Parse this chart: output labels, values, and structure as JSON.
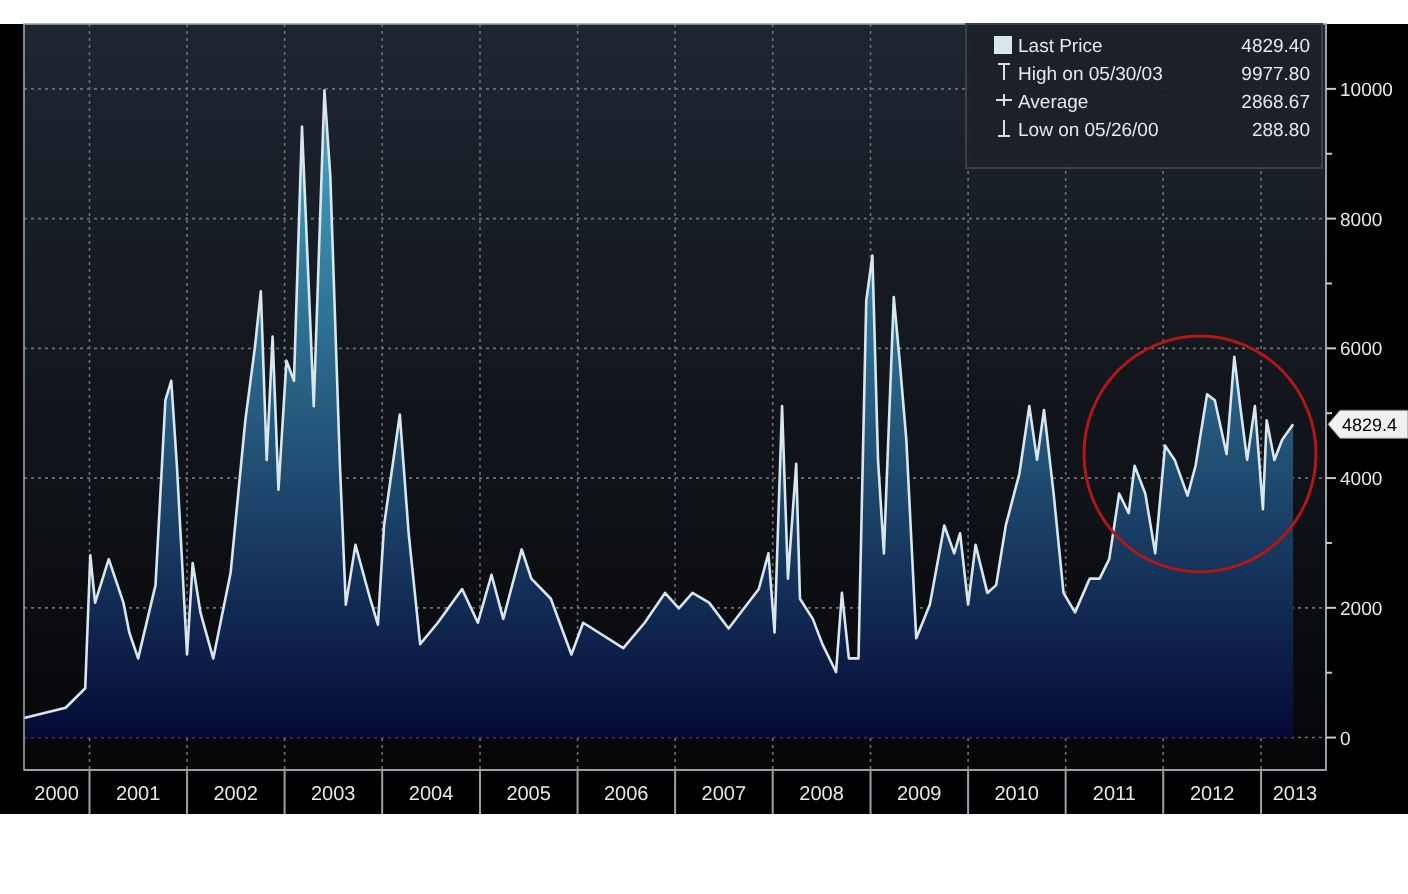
{
  "chart_data": {
    "type": "area",
    "x": [
      "2000-05-01",
      "2000-10-04",
      "2000-12-16",
      "2001-01-04",
      "2001-01-22",
      "2001-03-14",
      "2001-05-08",
      "2001-05-30",
      "2001-07-02",
      "2001-09-05",
      "2001-10-12",
      "2001-11-03",
      "2001-11-24",
      "2002-01-01",
      "2002-01-22",
      "2002-02-20",
      "2002-04-09",
      "2002-06-13",
      "2002-08-07",
      "2002-09-12",
      "2002-10-04",
      "2002-10-26",
      "2002-11-17",
      "2002-12-09",
      "2003-01-08",
      "2003-02-05",
      "2003-03-07",
      "2003-04-20",
      "2003-05-30",
      "2003-06-21",
      "2003-07-27",
      "2003-08-18",
      "2003-09-23",
      "2003-11-17",
      "2003-12-16",
      "2004-01-08",
      "2004-03-07",
      "2004-04-09",
      "2004-05-22",
      "2004-07-27",
      "2004-10-26",
      "2004-12-24",
      "2005-02-13",
      "2005-03-29",
      "2005-06-06",
      "2005-07-12",
      "2005-09-23",
      "2005-12-09",
      "2006-01-22",
      "2006-06-21",
      "2006-09-09",
      "2006-11-24",
      "2007-01-15",
      "2007-03-07",
      "2007-05-08",
      "2007-07-20",
      "2007-11-10",
      "2007-12-16",
      "2008-01-08",
      "2008-02-05",
      "2008-02-27",
      "2008-03-29",
      "2008-04-12",
      "2008-05-30",
      "2008-07-05",
      "2008-08-25",
      "2008-09-16",
      "2008-10-12",
      "2008-11-17",
      "2008-12-16",
      "2009-01-08",
      "2009-01-29",
      "2009-02-20",
      "2009-03-29",
      "2009-04-20",
      "2009-05-15",
      "2009-06-21",
      "2009-08-11",
      "2009-10-04",
      "2009-11-10",
      "2009-12-02",
      "2010-01-01",
      "2010-01-29",
      "2010-03-14",
      "2010-04-16",
      "2010-05-22",
      "2010-07-12",
      "2010-08-18",
      "2010-09-16",
      "2010-10-12",
      "2010-11-17",
      "2010-12-24",
      "2011-02-05",
      "2011-04-01",
      "2011-05-08",
      "2011-06-13",
      "2011-07-20",
      "2011-08-25",
      "2011-09-16",
      "2011-10-26",
      "2011-12-02",
      "2012-01-08",
      "2012-02-13",
      "2012-04-01",
      "2012-05-01",
      "2012-06-13",
      "2012-07-12",
      "2012-08-25",
      "2012-09-23",
      "2012-10-15",
      "2012-11-10",
      "2012-12-09",
      "2013-01-08",
      "2013-01-22",
      "2013-02-20",
      "2013-03-21",
      "2013-05-01"
    ],
    "series": [
      {
        "name": "Last Price",
        "color": "#d8e6ee",
        "values": [
          300,
          460,
          760,
          2810,
          2080,
          2750,
          2080,
          1620,
          1220,
          2350,
          5200,
          5500,
          4190,
          1280,
          2690,
          1930,
          1220,
          2540,
          4890,
          6020,
          6880,
          4280,
          6180,
          3820,
          5810,
          5500,
          9420,
          5110,
          9977.8,
          8650,
          4190,
          2050,
          2970,
          2140,
          1740,
          3270,
          4980,
          3150,
          1440,
          1770,
          2290,
          1770,
          2510,
          1830,
          2900,
          2450,
          2140,
          1280,
          1770,
          1380,
          1770,
          2230,
          1990,
          2230,
          2080,
          1680,
          2290,
          2840,
          1620,
          5110,
          2450,
          4220,
          2140,
          1830,
          1440,
          1010,
          2230,
          1220,
          1220,
          6730,
          7430,
          4280,
          2840,
          6790,
          5810,
          4590,
          1530,
          2050,
          3270,
          2840,
          3150,
          2050,
          2970,
          2230,
          2350,
          3270,
          4070,
          5110,
          4280,
          5050,
          3760,
          2230,
          1930,
          2450,
          2450,
          2750,
          3760,
          3460,
          4190,
          3760,
          2840,
          4500,
          4280,
          3730,
          4190,
          5290,
          5200,
          4370,
          5870,
          5110,
          4280,
          5110,
          3520,
          4890,
          4280,
          4590,
          4829.4
        ]
      }
    ],
    "xlim": [
      "2000-05-01",
      "2013-09-01"
    ],
    "xticks": [
      {
        "value": "2000-08-31",
        "label": "2000"
      },
      {
        "value": "2001-01-01",
        "label": null
      },
      {
        "value": "2001-07-02",
        "label": "2001"
      },
      {
        "value": "2002-01-01",
        "label": null
      },
      {
        "value": "2002-07-02",
        "label": "2002"
      },
      {
        "value": "2003-01-01",
        "label": null
      },
      {
        "value": "2003-07-02",
        "label": "2003"
      },
      {
        "value": "2004-01-01",
        "label": null
      },
      {
        "value": "2004-07-02",
        "label": "2004"
      },
      {
        "value": "2005-01-01",
        "label": null
      },
      {
        "value": "2005-07-02",
        "label": "2005"
      },
      {
        "value": "2006-01-01",
        "label": null
      },
      {
        "value": "2006-07-02",
        "label": "2006"
      },
      {
        "value": "2007-01-01",
        "label": null
      },
      {
        "value": "2007-07-02",
        "label": "2007"
      },
      {
        "value": "2008-01-01",
        "label": null
      },
      {
        "value": "2008-07-02",
        "label": "2008"
      },
      {
        "value": "2009-01-01",
        "label": null
      },
      {
        "value": "2009-07-02",
        "label": "2009"
      },
      {
        "value": "2010-01-01",
        "label": null
      },
      {
        "value": "2010-07-02",
        "label": "2010"
      },
      {
        "value": "2011-01-01",
        "label": null
      },
      {
        "value": "2011-07-02",
        "label": "2011"
      },
      {
        "value": "2012-01-01",
        "label": null
      },
      {
        "value": "2012-07-02",
        "label": "2012"
      },
      {
        "value": "2013-01-01",
        "label": null
      },
      {
        "value": "2013-05-08",
        "label": "2013"
      }
    ],
    "ylim": [
      -500,
      11000
    ],
    "yticks": [
      0,
      {
        "value": 1000,
        "label": null
      },
      2000,
      {
        "value": 3000,
        "label": null
      },
      4000,
      {
        "value": 5000,
        "label": null
      },
      6000,
      {
        "value": 7000,
        "label": null
      },
      8000,
      {
        "value": 9000,
        "label": null
      },
      10000
    ],
    "grid": true,
    "legend": "top right",
    "annotations": [
      "4829.40",
      "High on 05/30/03",
      "9977.80",
      "Average",
      "2868.67",
      "Low on 05/26/00",
      "288.80",
      {
        "text": "4829.4",
        "y": 4829.4
      }
    ]
  }
}
